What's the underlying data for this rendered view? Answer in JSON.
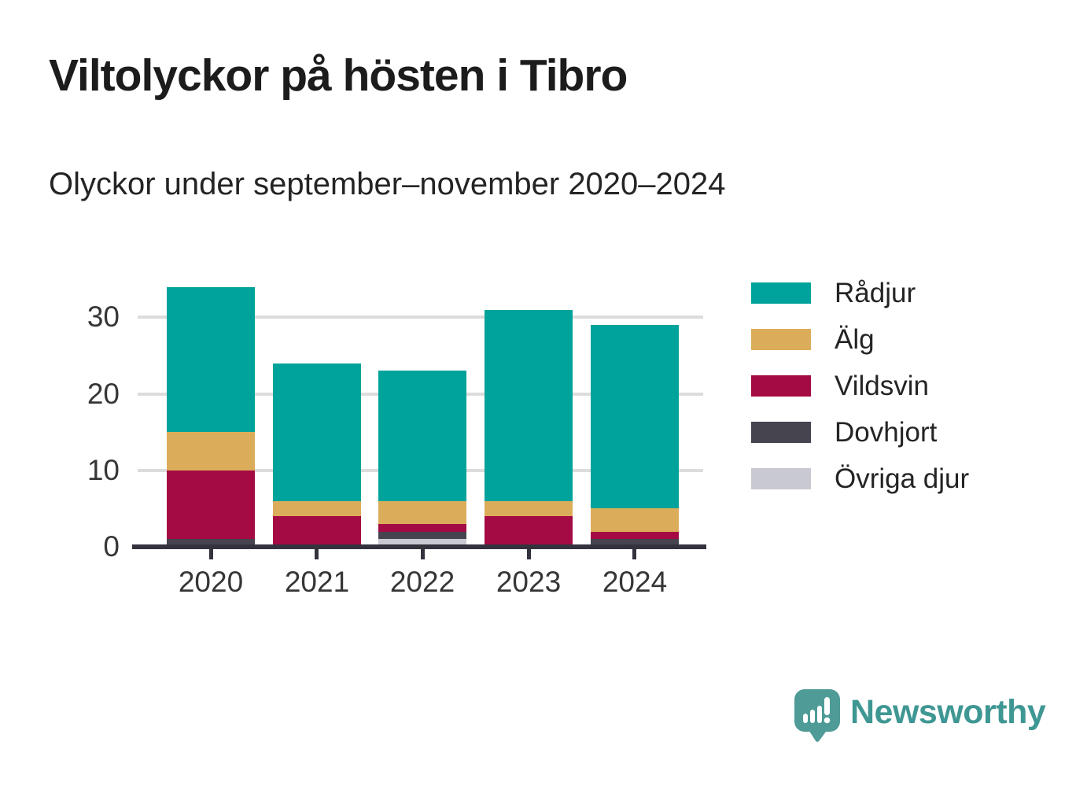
{
  "chart_data": {
    "type": "bar",
    "stacked": true,
    "title": "Viltolyckor på hösten i Tibro",
    "subtitle": "Olyckor under september–november 2020–2024",
    "categories": [
      "2020",
      "2021",
      "2022",
      "2023",
      "2024"
    ],
    "series": [
      {
        "name": "Rådjur",
        "color": "#00A39B",
        "values": [
          19,
          18,
          17,
          25,
          24
        ]
      },
      {
        "name": "Älg",
        "color": "#DBAD5A",
        "values": [
          5,
          2,
          3,
          2,
          3
        ]
      },
      {
        "name": "Vildsvin",
        "color": "#A40A44",
        "values": [
          9,
          4,
          1,
          4,
          1
        ]
      },
      {
        "name": "Dovhjort",
        "color": "#45444F",
        "values": [
          1,
          0,
          1,
          0,
          1
        ]
      },
      {
        "name": "Övriga djur",
        "color": "#C9C9D1",
        "values": [
          0,
          0,
          1,
          0,
          0
        ]
      }
    ],
    "stack_order_bottom_to_top": [
      "Övriga djur",
      "Dovhjort",
      "Vildsvin",
      "Älg",
      "Rådjur"
    ],
    "totals": [
      34,
      24,
      23,
      31,
      29
    ],
    "yticks": [
      0,
      10,
      20,
      30
    ],
    "ylim": [
      0,
      35
    ],
    "gridlines": [
      10,
      20,
      30
    ],
    "grid": "horizontal",
    "legend_position": "right",
    "xlabel": "",
    "ylabel": ""
  },
  "branding": {
    "logo_text": "Newsworthy",
    "logo_icon": "bar-chart-speech-bubble-icon",
    "logo_color": "#3F9793",
    "logo_icon_color": "#4E9B97"
  },
  "colors": {
    "background": "#FFFFFF",
    "axis": "#34333D",
    "gridline": "#DCDCDC",
    "tick_label": "#363636",
    "title": "#1C1C1C",
    "subtitle": "#242424"
  }
}
